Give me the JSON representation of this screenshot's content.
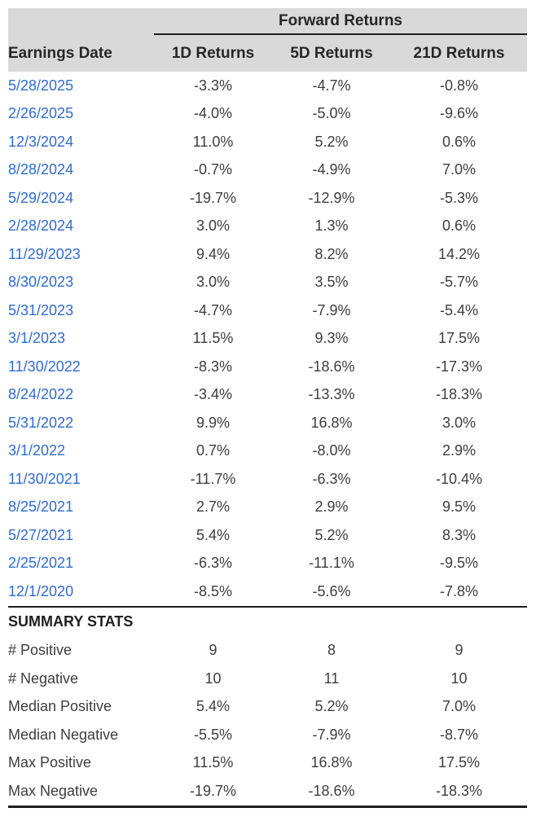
{
  "chart_data": {
    "type": "table",
    "group_header": "Forward Returns",
    "columns": [
      "Earnings Date",
      "1D Returns",
      "5D Returns",
      "21D Returns"
    ],
    "rows": [
      [
        "5/28/2025",
        "-3.3%",
        "-4.7%",
        "-0.8%"
      ],
      [
        "2/26/2025",
        "-4.0%",
        "-5.0%",
        "-9.6%"
      ],
      [
        "12/3/2024",
        "11.0%",
        "5.2%",
        "0.6%"
      ],
      [
        "8/28/2024",
        "-0.7%",
        "-4.9%",
        "7.0%"
      ],
      [
        "5/29/2024",
        "-19.7%",
        "-12.9%",
        "-5.3%"
      ],
      [
        "2/28/2024",
        "3.0%",
        "1.3%",
        "0.6%"
      ],
      [
        "11/29/2023",
        "9.4%",
        "8.2%",
        "14.2%"
      ],
      [
        "8/30/2023",
        "3.0%",
        "3.5%",
        "-5.7%"
      ],
      [
        "5/31/2023",
        "-4.7%",
        "-7.9%",
        "-5.4%"
      ],
      [
        "3/1/2023",
        "11.5%",
        "9.3%",
        "17.5%"
      ],
      [
        "11/30/2022",
        "-8.3%",
        "-18.6%",
        "-17.3%"
      ],
      [
        "8/24/2022",
        "-3.4%",
        "-13.3%",
        "-18.3%"
      ],
      [
        "5/31/2022",
        "9.9%",
        "16.8%",
        "3.0%"
      ],
      [
        "3/1/2022",
        "0.7%",
        "-8.0%",
        "2.9%"
      ],
      [
        "11/30/2021",
        "-11.7%",
        "-6.3%",
        "-10.4%"
      ],
      [
        "8/25/2021",
        "2.7%",
        "2.9%",
        "9.5%"
      ],
      [
        "5/27/2021",
        "5.4%",
        "5.2%",
        "8.3%"
      ],
      [
        "2/25/2021",
        "-6.3%",
        "-11.1%",
        "-9.5%"
      ],
      [
        "12/1/2020",
        "-8.5%",
        "-5.6%",
        "-7.8%"
      ]
    ],
    "summary_title": "SUMMARY STATS",
    "summary_rows": [
      [
        "# Positive",
        "9",
        "8",
        "9"
      ],
      [
        "# Negative",
        "10",
        "11",
        "10"
      ],
      [
        "Median Positive",
        "5.4%",
        "5.2%",
        "7.0%"
      ],
      [
        "Median Negative",
        "-5.5%",
        "-7.9%",
        "-8.7%"
      ],
      [
        "Max Positive",
        "11.5%",
        "16.8%",
        "17.5%"
      ],
      [
        "Max Negative",
        "-19.7%",
        "-18.6%",
        "-18.3%"
      ]
    ]
  },
  "colors": {
    "background": "#ffffff",
    "header_bg": "#d9d9d9",
    "date_link": "#2e6bd6",
    "value_text": "#3d3d3d",
    "header_text": "#262626",
    "rule": "#1f1f1f"
  }
}
